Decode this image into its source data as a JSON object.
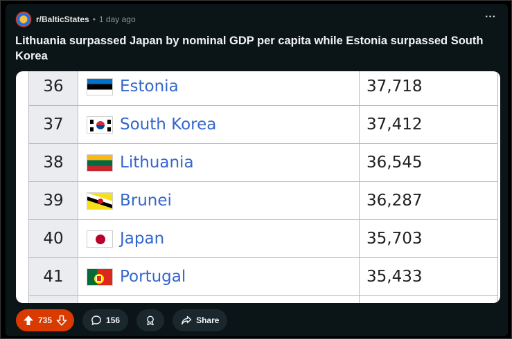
{
  "post": {
    "subreddit": "r/BalticStates",
    "separator": "•",
    "time": "1 day ago",
    "more_label": "···",
    "title": "Lithuania surpassed Japan by nominal GDP per capita while Estonia surpassed South Korea"
  },
  "table": {
    "rows": [
      {
        "rank": "36",
        "country": "Estonia",
        "value": "37,718",
        "flag": "estonia-flag"
      },
      {
        "rank": "37",
        "country": "South Korea",
        "value": "37,412",
        "flag": "south-korea-flag"
      },
      {
        "rank": "38",
        "country": "Lithuania",
        "value": "36,545",
        "flag": "lithuania-flag"
      },
      {
        "rank": "39",
        "country": "Brunei",
        "value": "36,287",
        "flag": "brunei-flag"
      },
      {
        "rank": "40",
        "country": "Japan",
        "value": "35,703",
        "flag": "japan-flag"
      },
      {
        "rank": "41",
        "country": "Portugal",
        "value": "35,433",
        "flag": "portugal-flag"
      }
    ]
  },
  "actions": {
    "score": "735",
    "comments": "156",
    "share_label": "Share"
  },
  "colors": {
    "background": "#0b1416",
    "upvote_active": "#d93a00",
    "link_blue": "#3366cc",
    "rank_cell": "#eaecf0"
  }
}
